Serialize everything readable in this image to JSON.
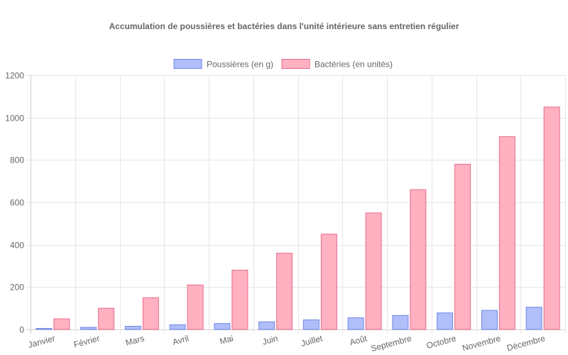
{
  "chart_data": {
    "type": "bar",
    "title": "Accumulation de poussières et bactéries dans l'unité intérieure sans entretien régulier",
    "xlabel": "",
    "ylabel": "",
    "categories": [
      "Janvier",
      "Février",
      "Mars",
      "Avril",
      "Mai",
      "Juin",
      "Juillet",
      "Août",
      "Septembre",
      "Octobre",
      "Novembre",
      "Décembre"
    ],
    "series": [
      {
        "name": "Poussières (en g)",
        "values": [
          5,
          10,
          15,
          22,
          28,
          36,
          45,
          55,
          66,
          78,
          90,
          105
        ],
        "color": "#b0bffa",
        "border_color": "#6f86e6"
      },
      {
        "name": "Bactéries (en unités)",
        "values": [
          50,
          100,
          150,
          210,
          280,
          360,
          450,
          550,
          660,
          780,
          910,
          1050
        ],
        "color": "#ffb1c1",
        "border_color": "#e96a8a"
      }
    ],
    "ylim": [
      0,
      1200
    ],
    "yticks": [
      0,
      200,
      400,
      600,
      800,
      1000,
      1200
    ],
    "grid": true,
    "legend_position": "top"
  }
}
